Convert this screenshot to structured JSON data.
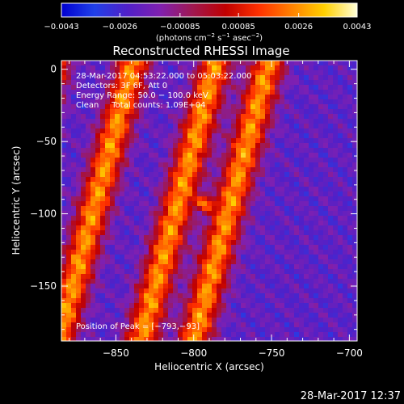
{
  "chart_data": {
    "type": "heatmap",
    "title": "Reconstructed RHESSI Image",
    "xlabel": "Heliocentric X (arcsec)",
    "ylabel": "Heliocentric Y (arcsec)",
    "xlim": [
      -885,
      -695
    ],
    "ylim": [
      -188,
      6
    ],
    "xticks": [
      {
        "value": -850,
        "label": "−850"
      },
      {
        "value": -800,
        "label": "−800"
      },
      {
        "value": -750,
        "label": "−750"
      },
      {
        "value": -700,
        "label": "−700"
      }
    ],
    "yticks": [
      {
        "value": 0,
        "label": "0"
      },
      {
        "value": -50,
        "label": "−50"
      },
      {
        "value": -100,
        "label": "−100"
      },
      {
        "value": -150,
        "label": "−150"
      }
    ],
    "colorbar": {
      "range": [
        -0.0043,
        0.0043
      ],
      "ticks": [
        {
          "value": -0.0043,
          "label": "−0.0043"
        },
        {
          "value": -0.0026,
          "label": "−0.0026"
        },
        {
          "value": -0.00085,
          "label": "−0.00085"
        },
        {
          "value": 0.00085,
          "label": "0.00085"
        },
        {
          "value": 0.0026,
          "label": "0.0026"
        },
        {
          "value": 0.0043,
          "label": "0.0043"
        }
      ],
      "unit_parts": [
        "(photons cm",
        "−2",
        " s",
        "−1",
        " asec",
        "−2",
        ")"
      ],
      "colormap": [
        "#0000d0",
        "#2040e8",
        "#5020c8",
        "#8020b0",
        "#a01850",
        "#c00000",
        "#ff3000",
        "#ff8000",
        "#ffd000",
        "#ffffd8"
      ]
    },
    "annotations": [
      "28-Mar-2017 04:53:22.000 to 05:03:22.000",
      "Detectors: 3F 6F, Att 0",
      "Energy Range: 50.0 − 100.0 keV",
      "Clean     Total counts: 1.09E+04"
    ],
    "peak_label": "Position of Peak = [−793,−93]",
    "peak": {
      "x": -793,
      "y": -93,
      "value": 0.0043
    },
    "ridges_x_at_y0": [
      -891,
      -840,
      -787,
      -753
    ],
    "ridge_slope_dx_per_dy": 0.25
  },
  "footer_timestamp": "28-Mar-2017 12:37"
}
